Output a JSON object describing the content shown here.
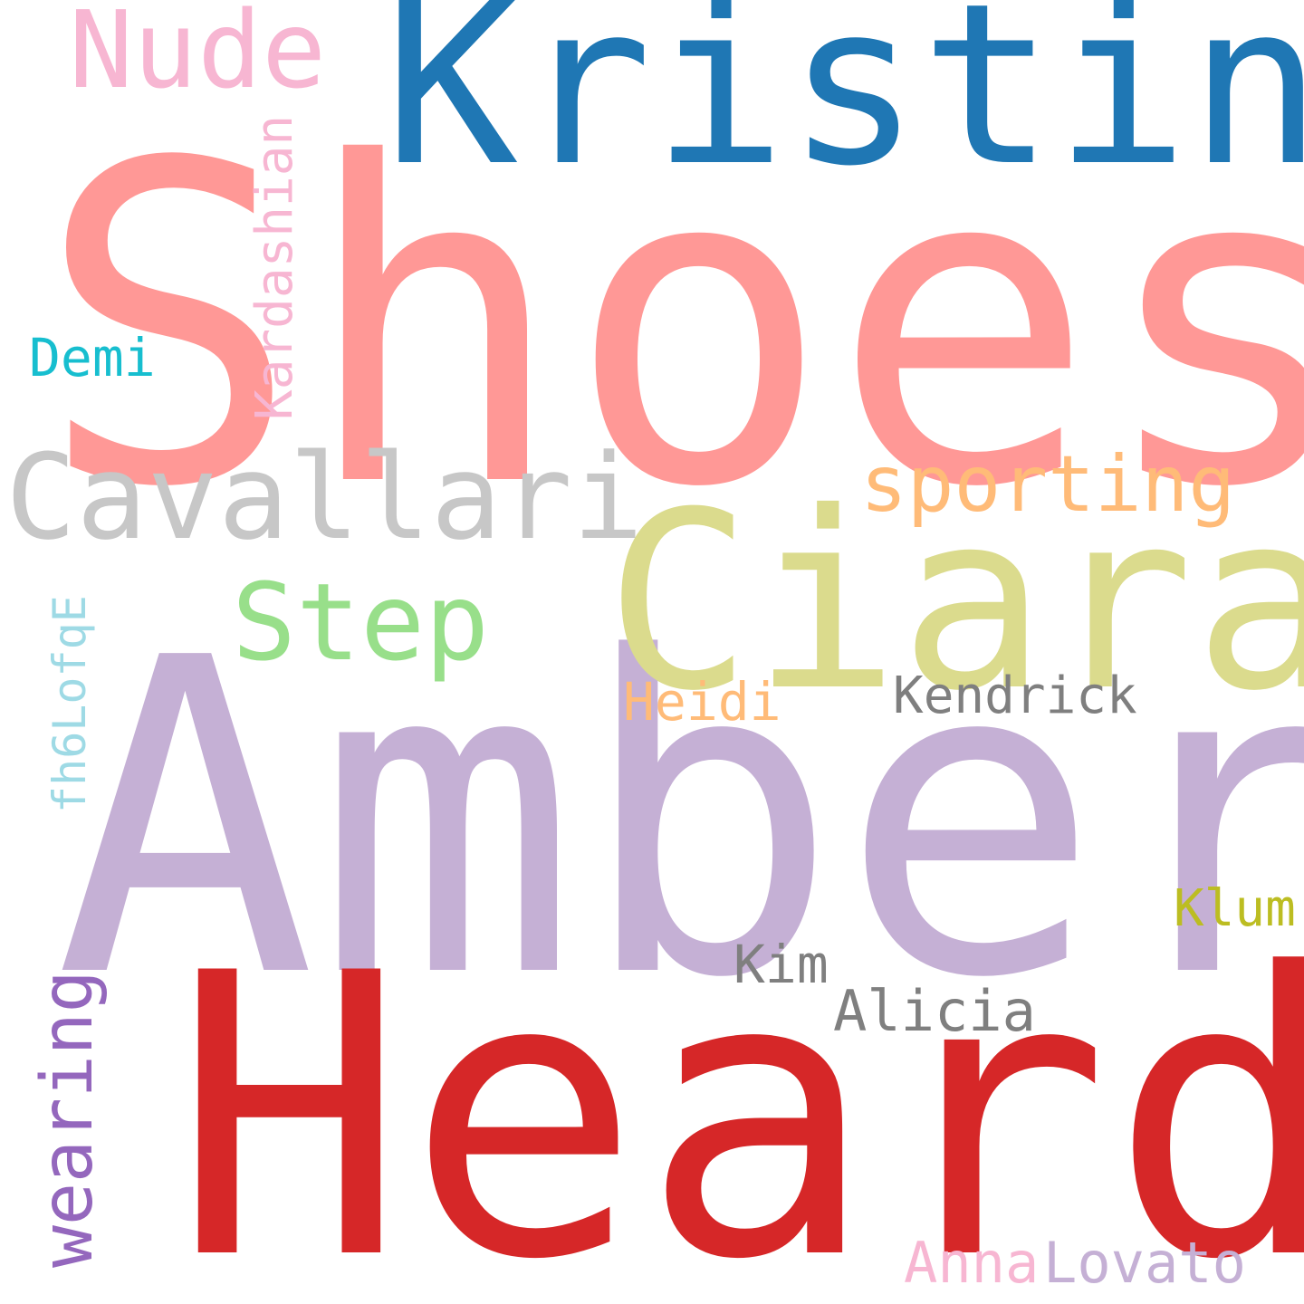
{
  "word_cloud": {
    "background_color": "#ffffff",
    "words": [
      {
        "text": "Shoes",
        "color": "#ff9896"
      },
      {
        "text": "Amber",
        "color": "#c5b0d5"
      },
      {
        "text": "Heard",
        "color": "#d62728"
      },
      {
        "text": "Kristin",
        "color": "#1f77b4"
      },
      {
        "text": "Ciara",
        "color": "#dbdb8d"
      },
      {
        "text": "Cavallari",
        "color": "#c7c7c7"
      },
      {
        "text": "Nude",
        "color": "#f7b6d2"
      },
      {
        "text": "sporting",
        "color": "#ffbb78"
      },
      {
        "text": "Step",
        "color": "#98df8a"
      },
      {
        "text": "Kardashian",
        "color": "#f7b6d2",
        "orientation": "vertical"
      },
      {
        "text": "wearing",
        "color": "#9467bd",
        "orientation": "vertical"
      },
      {
        "text": "fh6LofqE",
        "color": "#9edae5",
        "orientation": "vertical"
      },
      {
        "text": "Demi",
        "color": "#17becf"
      },
      {
        "text": "Heidi",
        "color": "#ffbb78"
      },
      {
        "text": "Kendrick",
        "color": "#7f7f7f"
      },
      {
        "text": "Klum",
        "color": "#bcbd22"
      },
      {
        "text": "Kim",
        "color": "#7f7f7f"
      },
      {
        "text": "Alicia",
        "color": "#7f7f7f"
      },
      {
        "text": "Anna",
        "color": "#f7b6d2"
      },
      {
        "text": "Lovato",
        "color": "#c5b0d5"
      }
    ]
  }
}
